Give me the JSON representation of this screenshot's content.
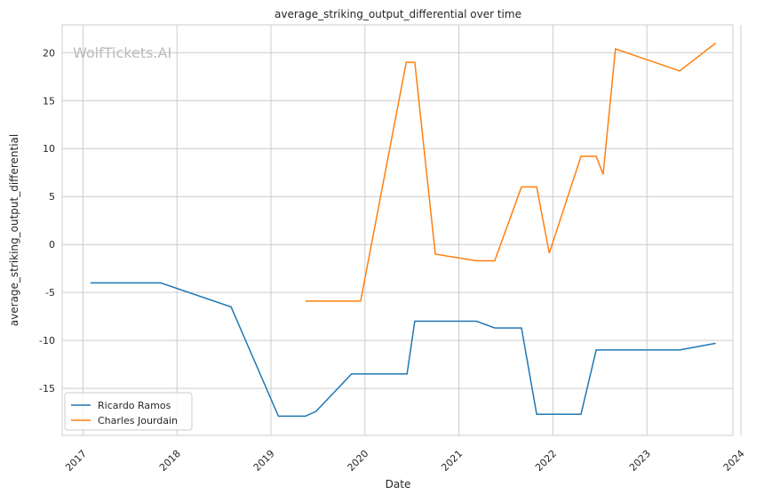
{
  "chart_data": {
    "type": "line",
    "title": "average_striking_output_differential over time",
    "xlabel": "Date",
    "ylabel": "average_striking_output_differential",
    "watermark": "WolfTickets.AI",
    "xlim": [
      "2016-10-12",
      "2023-12-01"
    ],
    "ylim": [
      -19.9,
      22.9
    ],
    "x_ticks": [
      "2017",
      "2018",
      "2019",
      "2020",
      "2021",
      "2022",
      "2023",
      "2024"
    ],
    "y_ticks": [
      -15,
      -10,
      -5,
      0,
      5,
      10,
      15,
      20
    ],
    "grid": true,
    "legend_placement": "lower-left",
    "series": [
      {
        "name": "Ricardo Ramos",
        "color": "#1f77b4",
        "x": [
          "2017-01-30",
          "2017-10-30",
          "2018-07-30",
          "2019-01-30",
          "2019-05-15",
          "2019-06-25",
          "2019-11-10",
          "2020-06-13",
          "2020-07-13",
          "2021-03-10",
          "2021-05-20",
          "2021-09-01",
          "2021-10-30",
          "2022-04-20",
          "2022-06-18",
          "2023-05-08",
          "2023-09-25"
        ],
        "y": [
          -4.0,
          -4.0,
          -6.5,
          -17.9,
          -17.9,
          -17.4,
          -13.5,
          -13.5,
          -8.0,
          -8.0,
          -8.7,
          -8.7,
          -17.7,
          -17.7,
          -11.0,
          -11.0,
          -10.3
        ]
      },
      {
        "name": "Charles Jourdain",
        "color": "#ff7f0e",
        "x": [
          "2019-05-15",
          "2019-12-15",
          "2020-06-10",
          "2020-07-13",
          "2020-10-01",
          "2021-03-10",
          "2021-05-20",
          "2021-09-01",
          "2021-10-30",
          "2021-12-18",
          "2022-04-20",
          "2022-06-18",
          "2022-07-15",
          "2022-09-01",
          "2023-05-08",
          "2023-09-25"
        ],
        "y": [
          -5.9,
          -5.9,
          19.0,
          19.0,
          -1.0,
          -1.7,
          -1.7,
          6.0,
          6.0,
          -0.9,
          9.2,
          9.2,
          7.3,
          20.4,
          18.1,
          21.0
        ]
      }
    ]
  }
}
